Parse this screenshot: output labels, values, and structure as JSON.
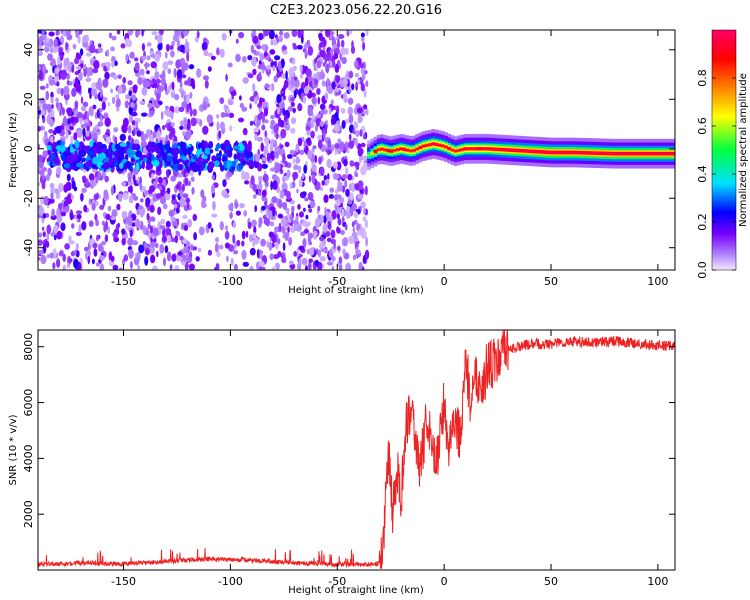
{
  "title": "C2E3.2023.056.22.20.G16",
  "chart_data": [
    {
      "type": "heatmap",
      "xlabel": "Height of straight line (km)",
      "ylabel": "Frequency (Hz)",
      "xlim": [
        -190,
        108
      ],
      "ylim": [
        -49,
        48
      ],
      "x_ticks": [
        -150,
        -100,
        -50,
        0,
        50,
        100
      ],
      "y_ticks": [
        -40,
        -20,
        0,
        20,
        40
      ],
      "colorbar": {
        "label": "Normalized spectral amplitude",
        "range": [
          0,
          1
        ],
        "ticks": [
          0.0,
          0.2,
          0.4,
          0.6,
          0.8
        ],
        "colormap": [
          "#f4e8ff",
          "#7a00ff",
          "#0000ff",
          "#00e0ff",
          "#00ff40",
          "#ffff00",
          "#ff8000",
          "#ff0000",
          "#ff0066"
        ]
      },
      "noise_region_x": [
        -190,
        -36
      ],
      "signal_track": {
        "x": [
          -36,
          -30,
          -25,
          -20,
          -15,
          -10,
          -5,
          0,
          5,
          10,
          20,
          30,
          40,
          50,
          60,
          80,
          108
        ],
        "y": [
          -3,
          0,
          -1,
          0,
          -1,
          1,
          2,
          1,
          -1,
          0,
          0,
          -0.5,
          -1,
          -1.5,
          -1.5,
          -2,
          -2
        ],
        "amplitude": [
          0.5,
          0.9,
          0.8,
          0.9,
          0.85,
          0.9,
          0.9,
          0.9,
          0.85,
          0.9,
          0.92,
          0.95,
          0.97,
          0.98,
          0.98,
          0.98,
          0.98
        ]
      },
      "grid": false
    },
    {
      "type": "line",
      "xlabel": "Height of straight line (km)",
      "ylabel": "SNR (10 * v/v)",
      "xlim": [
        -190,
        108
      ],
      "ylim": [
        0,
        8600
      ],
      "x_ticks": [
        -150,
        -100,
        -50,
        0,
        50,
        100
      ],
      "y_ticks": [
        2000,
        4000,
        6000,
        8000
      ],
      "series": [
        {
          "color": "#ee2222",
          "x": [
            -190,
            -170,
            -150,
            -130,
            -110,
            -90,
            -70,
            -50,
            -35,
            -30,
            -28,
            -26,
            -24,
            -22,
            -20,
            -18,
            -15,
            -12,
            -10,
            -8,
            -5,
            -3,
            0,
            2,
            5,
            8,
            10,
            12,
            15,
            18,
            20,
            25,
            30,
            35,
            40,
            50,
            60,
            70,
            80,
            90,
            100,
            108
          ],
          "y": [
            200,
            250,
            220,
            300,
            400,
            350,
            250,
            200,
            200,
            250,
            1500,
            4300,
            2000,
            3500,
            2700,
            5200,
            6000,
            3600,
            4300,
            5500,
            3900,
            4200,
            6000,
            4500,
            5500,
            4500,
            7800,
            6100,
            7000,
            6500,
            7300,
            7500,
            7900,
            8000,
            8100,
            8100,
            8200,
            8150,
            8200,
            8100,
            8050,
            8000
          ]
        }
      ],
      "grid": false
    }
  ]
}
